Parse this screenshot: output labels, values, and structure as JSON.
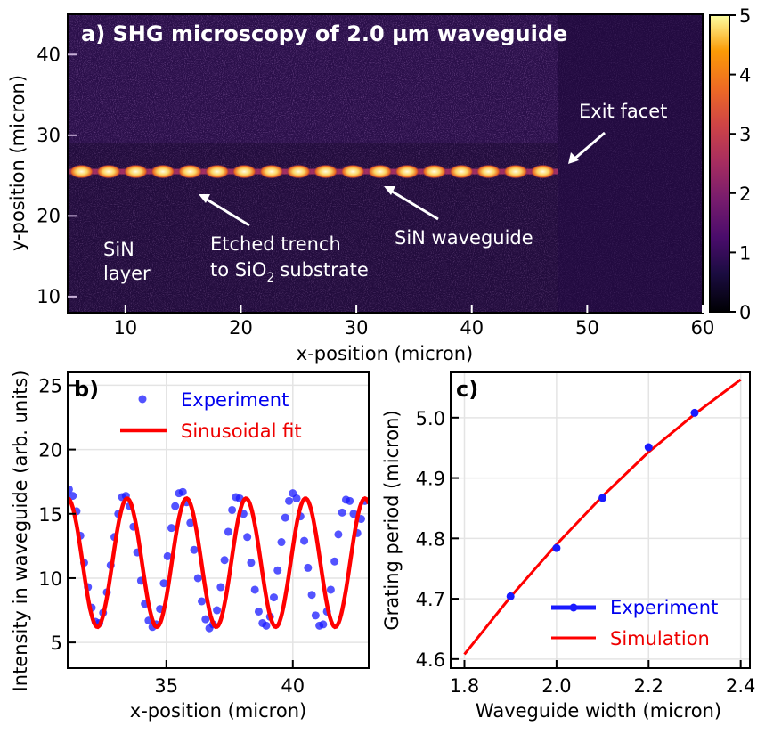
{
  "chart_data": [
    {
      "panel": "a",
      "type": "heatmap",
      "title": "a) SHG microscopy of 2.0 µm waveguide",
      "xlabel": "x-position (micron)",
      "ylabel": "y-position (micron)",
      "xlim": [
        5,
        60
      ],
      "ylim": [
        8,
        45
      ],
      "xticks": [
        10,
        20,
        30,
        40,
        50,
        60
      ],
      "yticks": [
        10,
        20,
        30,
        40
      ],
      "colorbar": {
        "range": [
          0,
          5
        ],
        "ticks": [
          0,
          1,
          2,
          3,
          4,
          5
        ],
        "colormap": "inferno"
      },
      "waveguide": {
        "y": 25.5,
        "x_start": 5,
        "x_end": 47.5,
        "period": 2.35,
        "peak_intensity": 5
      },
      "etched_region": {
        "x_start": 5,
        "x_end": 47.5,
        "y_min": 8,
        "y_max": 29
      },
      "annotations": [
        {
          "text": "Exit facet",
          "text_x": 50.5,
          "text_y": 32,
          "arrow_to": [
            48.3,
            26.2
          ]
        },
        {
          "text": "SiN waveguide",
          "text_x": 33,
          "text_y": 18.5,
          "arrow_to": [
            32.3,
            24.0
          ]
        },
        {
          "text": "Etched trench",
          "text_x": 17,
          "text_y": 20,
          "arrow_to": [
            16.3,
            23.5
          ]
        },
        {
          "text": "to SiO",
          "text_x": 17,
          "text_y": 16
        },
        {
          "text": "2",
          "text_x": 17,
          "text_y": 16
        },
        {
          "text": "substrate",
          "text_x": 17,
          "text_y": 16
        },
        {
          "text": "SiN",
          "text_x": 8,
          "text_y": 15.5
        },
        {
          "text": "layer",
          "text_x": 8,
          "text_y": 12.5
        }
      ],
      "grid": false
    },
    {
      "panel": "b",
      "type": "scatter",
      "label": "b)",
      "xlabel": "x-position (micron)",
      "ylabel": "Intensity in waveguide (arb. units)",
      "xlim": [
        31.1,
        43
      ],
      "ylim": [
        3,
        26
      ],
      "xticks": [
        35,
        40
      ],
      "yticks": [
        5,
        10,
        15,
        20,
        25
      ],
      "grid": true,
      "legend": "top-center",
      "fit": {
        "mean": 11.2,
        "amplitude": 5.0,
        "period": 2.35,
        "peak_x": 33.45
      },
      "series": [
        {
          "name": "Experiment",
          "color": "#1a1aff",
          "x": [
            31.15,
            31.3,
            31.45,
            31.6,
            31.75,
            31.9,
            32.05,
            32.2,
            32.35,
            32.5,
            32.65,
            32.8,
            32.95,
            33.1,
            33.25,
            33.4,
            33.55,
            33.7,
            33.85,
            34.0,
            34.15,
            34.3,
            34.45,
            34.6,
            34.75,
            34.9,
            35.05,
            35.2,
            35.35,
            35.5,
            35.65,
            35.8,
            35.95,
            36.1,
            36.25,
            36.4,
            36.55,
            36.7,
            36.85,
            37.0,
            37.15,
            37.3,
            37.45,
            37.6,
            37.75,
            37.9,
            38.05,
            38.2,
            38.35,
            38.5,
            38.65,
            38.8,
            38.95,
            39.1,
            39.25,
            39.4,
            39.55,
            39.7,
            39.85,
            40.0,
            40.15,
            40.3,
            40.45,
            40.6,
            40.75,
            40.9,
            41.05,
            41.2,
            41.35,
            41.5,
            41.65,
            41.8,
            41.95,
            42.1,
            42.25,
            42.4,
            42.55,
            42.7,
            42.85
          ],
          "values": [
            16.9,
            16.4,
            15.2,
            13.3,
            11.2,
            9.3,
            7.7,
            6.6,
            6.5,
            7.3,
            8.9,
            11.0,
            13.2,
            15.0,
            16.3,
            16.4,
            15.6,
            14.0,
            12.0,
            9.8,
            8.0,
            6.7,
            6.2,
            6.4,
            7.6,
            9.6,
            11.7,
            13.9,
            15.6,
            16.6,
            16.7,
            15.9,
            14.3,
            12.2,
            10.0,
            8.2,
            6.8,
            6.1,
            6.4,
            7.5,
            9.3,
            11.4,
            13.6,
            15.3,
            16.3,
            16.2,
            15.0,
            13.2,
            11.2,
            9.1,
            7.4,
            6.5,
            6.3,
            7.0,
            8.5,
            10.6,
            12.8,
            14.7,
            16.0,
            16.6,
            16.2,
            14.8,
            12.9,
            10.8,
            8.7,
            7.1,
            6.3,
            6.4,
            7.4,
            9.1,
            11.3,
            13.4,
            15.1,
            16.1,
            16.0,
            15.0,
            13.5,
            14.6,
            16.0
          ]
        },
        {
          "name": "Sinusoidal fit",
          "color": "#ff0000"
        }
      ]
    },
    {
      "panel": "c",
      "type": "line",
      "label": "c)",
      "xlabel": "Waveguide width (micron)",
      "ylabel": "Grating period (micron)",
      "xlim": [
        1.77,
        2.42
      ],
      "ylim": [
        4.585,
        5.075
      ],
      "xticks": [
        1.8,
        2.0,
        2.2,
        2.4
      ],
      "yticks": [
        4.6,
        4.7,
        4.8,
        4.9,
        5.0
      ],
      "grid": true,
      "legend": "bottom-right",
      "series": [
        {
          "name": "Experiment",
          "color": "#1a1aff",
          "x": [
            1.9,
            2.0,
            2.1,
            2.2,
            2.3
          ],
          "values": [
            4.704,
            4.784,
            4.867,
            4.951,
            5.008
          ]
        },
        {
          "name": "Simulation",
          "color": "#ff0000",
          "x": [
            1.8,
            1.9,
            2.0,
            2.1,
            2.2,
            2.3,
            2.4
          ],
          "values": [
            4.608,
            4.703,
            4.79,
            4.87,
            4.943,
            5.006,
            5.063
          ]
        }
      ]
    }
  ]
}
